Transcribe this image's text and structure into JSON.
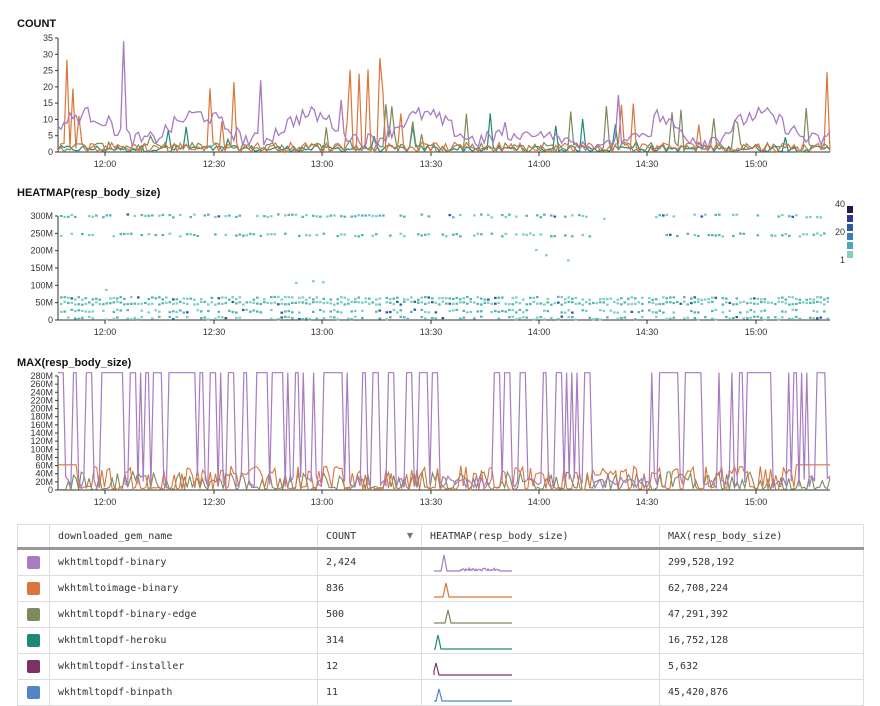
{
  "charts": {
    "count": {
      "title": "COUNT",
      "yticks": [
        "0",
        "5",
        "10",
        "15",
        "20",
        "25",
        "30",
        "35"
      ]
    },
    "heatmap": {
      "title": "HEATMAP(resp_body_size)",
      "yticks": [
        "0",
        "50M",
        "100M",
        "150M",
        "200M",
        "250M",
        "300M"
      ],
      "legend": [
        "40",
        "20",
        "1"
      ]
    },
    "max": {
      "title": "MAX(resp_body_size)",
      "yticks": [
        "0",
        "20M",
        "40M",
        "60M",
        "80M",
        "100M",
        "120M",
        "140M",
        "160M",
        "180M",
        "200M",
        "220M",
        "240M",
        "260M",
        "280M"
      ]
    },
    "xticks": [
      "12:00",
      "12:30",
      "13:00",
      "13:30",
      "14:00",
      "14:30",
      "15:00"
    ]
  },
  "table": {
    "headers": [
      "downloaded_gem_name",
      "COUNT",
      "HEATMAP(resp_body_size)",
      "MAX(resp_body_size)"
    ],
    "sort_indicator": "▼",
    "rows": [
      {
        "name": "wkhtmltopdf-binary",
        "count": "2,424",
        "max": "299,528,192",
        "color": "#a87bc2"
      },
      {
        "name": "wkhtmltoimage-binary",
        "count": "836",
        "max": "62,708,224",
        "color": "#d9763c"
      },
      {
        "name": "wkhtmltopdf-binary-edge",
        "count": "500",
        "max": "47,291,392",
        "color": "#7d8a5e"
      },
      {
        "name": "wkhtmltopdf-heroku",
        "count": "314",
        "max": "16,752,128",
        "color": "#1e8a74"
      },
      {
        "name": "wkhtmltopdf-installer",
        "count": "12",
        "max": "5,632",
        "color": "#7a3463"
      },
      {
        "name": "wkhtmltopdf-binpath",
        "count": "11",
        "max": "45,420,876",
        "color": "#4f86c6"
      }
    ]
  },
  "chart_data": [
    {
      "type": "line",
      "title": "COUNT",
      "x_range": [
        "11:45",
        "15:15"
      ],
      "ylim": [
        0,
        36
      ],
      "series": [
        {
          "name": "wkhtmltopdf-binary",
          "color": "#a87bc2",
          "x": [
            "11:45",
            "11:52",
            "12:00",
            "12:10",
            "12:20",
            "12:40",
            "13:00",
            "13:10",
            "13:30",
            "13:45",
            "14:00",
            "14:20",
            "14:40",
            "14:55",
            "15:00",
            "15:10",
            "15:15"
          ],
          "values": [
            8,
            34,
            8,
            6,
            12,
            6,
            24,
            8,
            5,
            10,
            6,
            4,
            3,
            35,
            4,
            3,
            2
          ]
        },
        {
          "name": "wkhtmltoimage-binary",
          "color": "#d9763c",
          "x": [
            "11:45",
            "11:50",
            "12:00",
            "12:10",
            "12:25",
            "12:45",
            "13:00",
            "13:15",
            "13:30",
            "13:45",
            "14:00",
            "14:10",
            "14:30",
            "14:50",
            "15:00",
            "15:12",
            "15:15"
          ],
          "values": [
            30,
            4,
            2,
            25,
            3,
            21,
            3,
            22,
            2,
            20,
            2,
            30,
            1,
            3,
            2,
            21,
            6
          ]
        },
        {
          "name": "wkhtmltopdf-binary-edge",
          "color": "#7d8a5e",
          "x": [
            "11:45",
            "12:00",
            "12:30",
            "13:00",
            "13:20",
            "13:40",
            "14:00",
            "14:20",
            "14:40",
            "15:00",
            "15:15"
          ],
          "values": [
            2,
            3,
            2,
            4,
            16,
            3,
            8,
            2,
            4,
            10,
            3
          ]
        },
        {
          "name": "wkhtmltopdf-heroku",
          "color": "#1e8a74",
          "x": [
            "11:45",
            "12:15",
            "13:00",
            "13:45",
            "14:10",
            "14:45",
            "15:15"
          ],
          "values": [
            1,
            3,
            15,
            8,
            2,
            6,
            1
          ]
        }
      ]
    },
    {
      "type": "heatmap",
      "title": "HEATMAP(resp_body_size)",
      "x_range": [
        "11:45",
        "15:15"
      ],
      "ylim": [
        0,
        310000000
      ],
      "bands": [
        {
          "y": 300000000,
          "density": "medium"
        },
        {
          "y": 245000000,
          "density": "medium"
        },
        {
          "y": 62000000,
          "density": "high"
        },
        {
          "y": 48000000,
          "density": "very high"
        },
        {
          "y": 25000000,
          "density": "medium"
        },
        {
          "y": 5000000,
          "density": "medium"
        }
      ],
      "legend_range": [
        1,
        40
      ]
    },
    {
      "type": "line",
      "title": "MAX(resp_body_size)",
      "x_range": [
        "11:45",
        "15:15"
      ],
      "ylim": [
        0,
        290000000
      ],
      "series": [
        {
          "name": "wkhtmltopdf-binary",
          "color": "#a87bc2",
          "values_range": [
            0,
            299528192
          ]
        },
        {
          "name": "wkhtmltoimage-binary",
          "color": "#d9763c",
          "values_range": [
            0,
            62708224
          ]
        },
        {
          "name": "wkhtmltopdf-binary-edge",
          "color": "#7d8a5e",
          "values_range": [
            0,
            47291392
          ]
        }
      ]
    }
  ]
}
